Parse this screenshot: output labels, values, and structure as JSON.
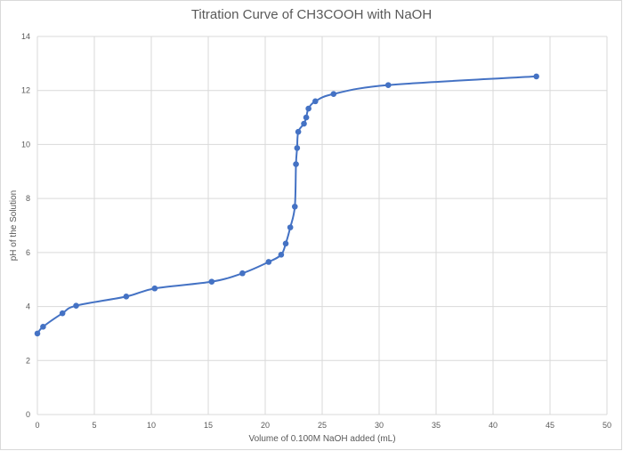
{
  "chart_data": {
    "type": "scatter",
    "title": "Titration Curve of CH3COOH with NaOH",
    "xlabel": "Volume of 0.100M NaOH added (mL)",
    "ylabel": "pH of the Solution",
    "xlim": [
      0,
      50
    ],
    "ylim": [
      0,
      14
    ],
    "x_ticks": [
      0,
      5,
      10,
      15,
      20,
      25,
      30,
      35,
      40,
      45,
      50
    ],
    "y_ticks": [
      0,
      2,
      4,
      6,
      8,
      10,
      12,
      14
    ],
    "grid": true,
    "legend": "none",
    "series_color": "#4472c4",
    "smooth_line": true,
    "points": [
      {
        "x": 0.0,
        "y": 3.0
      },
      {
        "x": 0.5,
        "y": 3.25
      },
      {
        "x": 2.2,
        "y": 3.75
      },
      {
        "x": 3.4,
        "y": 4.03
      },
      {
        "x": 7.8,
        "y": 4.37
      },
      {
        "x": 10.3,
        "y": 4.67
      },
      {
        "x": 15.3,
        "y": 4.92
      },
      {
        "x": 18.0,
        "y": 5.23
      },
      {
        "x": 20.3,
        "y": 5.65
      },
      {
        "x": 21.4,
        "y": 5.92
      },
      {
        "x": 21.8,
        "y": 6.33
      },
      {
        "x": 22.2,
        "y": 6.93
      },
      {
        "x": 22.6,
        "y": 7.7
      },
      {
        "x": 22.7,
        "y": 9.27
      },
      {
        "x": 22.8,
        "y": 9.87
      },
      {
        "x": 22.9,
        "y": 10.47
      },
      {
        "x": 23.4,
        "y": 10.77
      },
      {
        "x": 23.6,
        "y": 11.0
      },
      {
        "x": 23.8,
        "y": 11.33
      },
      {
        "x": 24.4,
        "y": 11.6
      },
      {
        "x": 26.0,
        "y": 11.87
      },
      {
        "x": 30.8,
        "y": 12.2
      },
      {
        "x": 43.8,
        "y": 12.52
      }
    ]
  }
}
